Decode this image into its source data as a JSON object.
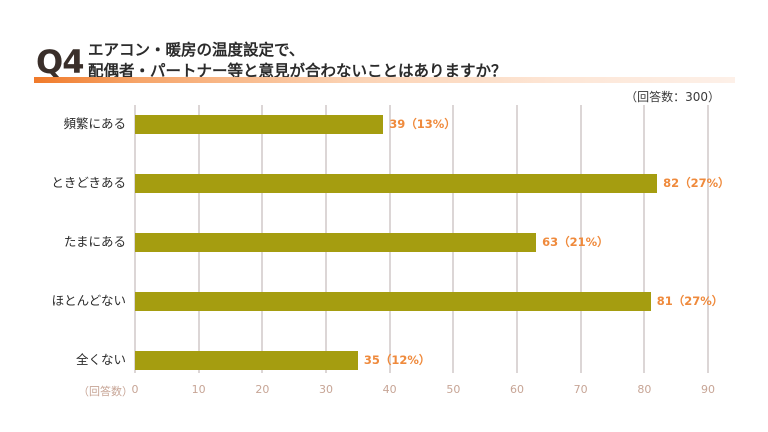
{
  "header": {
    "q_label": "Q4",
    "title_line1": "エアコン・暖房の温度設定で、",
    "title_line2": "配偶者・パートナー等と意見が合わないことはありますか？",
    "sample_size": "（回答数：300）"
  },
  "colors": {
    "bar": "#a59d10",
    "value_label": "#ef8a3c",
    "accent_gradient_start": "#f07a2a",
    "gridline": "#dcd6d6",
    "tick_label": "#c7a596"
  },
  "chart_data": {
    "type": "bar",
    "orientation": "horizontal",
    "title": "Q4 エアコン・暖房の温度設定で、配偶者・パートナー等と意見が合わないことはありますか？",
    "subtitle": "（回答数：300）",
    "xlabel": "（回答数）",
    "ylabel": "",
    "categories": [
      "頻繁にある",
      "ときどきある",
      "たまにある",
      "ほとんどない",
      "全くない"
    ],
    "values": [
      39,
      82,
      63,
      81,
      35
    ],
    "percentages": [
      "13%",
      "27%",
      "21%",
      "27%",
      "12%"
    ],
    "value_labels": [
      "39（13%）",
      "82（27%）",
      "63（21%）",
      "81（27%）",
      "35（12%）"
    ],
    "xlim": [
      0,
      90
    ],
    "xticks": [
      0,
      10,
      20,
      30,
      40,
      50,
      60,
      70,
      80,
      90
    ],
    "grid": true,
    "legend": "none"
  }
}
